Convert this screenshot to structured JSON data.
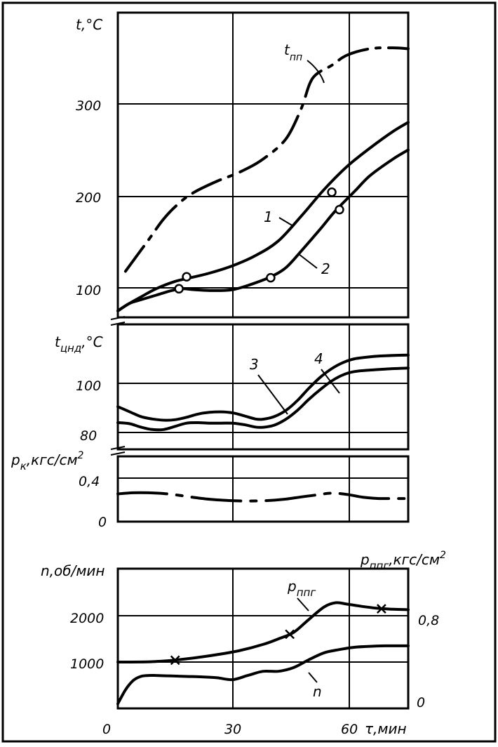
{
  "chart_data": [
    {
      "type": "line",
      "panel": "temperature",
      "ylabel": "t,°C",
      "y_ticks": [
        "300",
        "200",
        "100"
      ],
      "y_tick_values": [
        300,
        200,
        100
      ],
      "ylim": [
        70,
        410
      ],
      "xlim": [
        0,
        76
      ],
      "grid": true,
      "series": [
        {
          "name": "t_пп",
          "label_main": "t",
          "label_sub": "пп",
          "style": "dash-dot",
          "x": [
            2,
            8,
            12,
            16,
            20,
            26,
            32,
            38,
            44,
            48,
            51,
            56,
            60,
            66,
            72,
            76
          ],
          "y": [
            118,
            152,
            175,
            192,
            204,
            216,
            226,
            240,
            262,
            295,
            328,
            342,
            353,
            360,
            361,
            360
          ]
        },
        {
          "name": "1",
          "style": "solid",
          "x": [
            0,
            3,
            6,
            10,
            15,
            19,
            24,
            30,
            36,
            42,
            48,
            54,
            60,
            66,
            72,
            76
          ],
          "y": [
            75,
            83,
            90,
            99,
            107,
            111,
            116,
            124,
            135,
            151,
            178,
            207,
            232,
            252,
            270,
            280
          ]
        },
        {
          "name": "2",
          "style": "solid",
          "x": [
            0,
            3,
            6,
            10,
            14,
            17,
            20,
            25,
            30,
            35,
            40,
            44,
            48,
            53,
            57,
            62,
            66,
            72,
            76
          ],
          "y": [
            75,
            83,
            87,
            92,
            97,
            99,
            98,
            97,
            98,
            104,
            112,
            122,
            140,
            164,
            184,
            205,
            222,
            240,
            250
          ]
        }
      ],
      "markers": [
        {
          "series": "1",
          "x": 18,
          "y": 112,
          "shape": "circle"
        },
        {
          "series": "1",
          "x": 56,
          "y": 204,
          "shape": "circle"
        },
        {
          "series": "2",
          "x": 16,
          "y": 99,
          "shape": "circle"
        },
        {
          "series": "2",
          "x": 40,
          "y": 111,
          "shape": "circle"
        },
        {
          "series": "2",
          "x": 58,
          "y": 185,
          "shape": "circle"
        }
      ],
      "annotations": [
        "1",
        "2"
      ]
    },
    {
      "type": "line",
      "panel": "lp-cylinder-temperature",
      "ylabel_main": "t",
      "ylabel_sub": "цнд",
      "ylabel_unit": ",°С",
      "y_ticks": [
        "100",
        "80"
      ],
      "y_tick_values": [
        100,
        80
      ],
      "ylim": [
        74,
        120
      ],
      "xlim": [
        0,
        76
      ],
      "grid": true,
      "series": [
        {
          "name": "3",
          "style": "solid",
          "x": [
            0,
            3,
            6,
            9,
            12,
            15,
            18,
            21,
            24,
            27,
            30,
            33,
            36,
            38,
            41,
            44,
            47,
            50,
            53,
            56,
            59,
            62,
            66,
            70,
            76
          ],
          "y": [
            90.5,
            88.5,
            86.5,
            85.5,
            85,
            85.2,
            86.2,
            87.5,
            88.2,
            88.4,
            88,
            86.8,
            85.5,
            85.4,
            86.5,
            89,
            93,
            98,
            102.5,
            106,
            108.5,
            110,
            110.8,
            111.2,
            111.5
          ]
        },
        {
          "name": "4",
          "style": "solid",
          "x": [
            0,
            3,
            6,
            9,
            12,
            15,
            18,
            21,
            24,
            27,
            30,
            33,
            36,
            38,
            41,
            44,
            47,
            50,
            53,
            56,
            59,
            62,
            66,
            70,
            76
          ],
          "y": [
            84,
            83.6,
            82.2,
            81.2,
            81.2,
            82.5,
            83.8,
            84,
            83.8,
            83.8,
            83.8,
            83.2,
            82.2,
            82.1,
            83,
            85.4,
            89,
            93.5,
            97.5,
            101,
            103.5,
            104.8,
            105.4,
            105.8,
            106.2
          ]
        }
      ],
      "annotations": [
        "3",
        "4"
      ]
    },
    {
      "type": "line",
      "panel": "condenser-pressure",
      "ylabel_main": "p",
      "ylabel_sub": "к",
      "ylabel_unit": ",кгс/см",
      "ylabel_sup": "2",
      "y_ticks": [
        "0,4",
        "0"
      ],
      "y_tick_values": [
        0.4,
        0
      ],
      "ylim": [
        0,
        0.4
      ],
      "xlim": [
        0,
        76
      ],
      "grid": true,
      "series": [
        {
          "name": "p_к",
          "style": "partially dash-dot",
          "x": [
            0,
            4,
            8,
            12,
            16,
            20,
            24,
            28,
            32,
            36,
            40,
            44,
            48,
            52,
            56,
            60,
            64,
            68,
            72,
            76
          ],
          "y": [
            0.255,
            0.265,
            0.265,
            0.258,
            0.242,
            0.222,
            0.206,
            0.196,
            0.19,
            0.19,
            0.195,
            0.207,
            0.227,
            0.245,
            0.262,
            0.25,
            0.225,
            0.213,
            0.212,
            0.212
          ]
        }
      ]
    },
    {
      "type": "line",
      "panel": "speed-and-steam-pressure",
      "ylabel_left": "n,об/мин",
      "ylabel_right_main": "p",
      "ylabel_right_sub": "ппг",
      "ylabel_right_unit": ",кгс/см",
      "ylabel_right_sup": "2",
      "y_ticks_left": [
        "2000",
        "1000"
      ],
      "y_tick_values_left": [
        2000,
        1000
      ],
      "y_ticks_right": [
        "0,8",
        "0"
      ],
      "y_tick_values_right": [
        0.8,
        0
      ],
      "ylim_left": [
        0,
        2700
      ],
      "ylim_right": [
        0,
        1.0
      ],
      "xlabel": "τ,мин",
      "x_ticks": [
        "0",
        "30",
        "60"
      ],
      "x_tick_values": [
        0,
        30,
        60
      ],
      "xlim": [
        0,
        76
      ],
      "grid": true,
      "series": [
        {
          "name": "p_ппг",
          "label_main": "p",
          "label_sub": "ппг",
          "style": "solid",
          "x": [
            0,
            6,
            10,
            14,
            20,
            26,
            32,
            38,
            42,
            46,
            50,
            54,
            57,
            60,
            64,
            68,
            72,
            76
          ],
          "y": [
            1000,
            1002,
            1012,
            1035,
            1090,
            1160,
            1250,
            1380,
            1500,
            1640,
            1920,
            2190,
            2280,
            2250,
            2200,
            2160,
            2140,
            2130
          ]
        },
        {
          "name": "n",
          "style": "solid",
          "x": [
            0,
            2,
            4,
            6,
            8,
            10,
            14,
            18,
            22,
            26,
            30,
            34,
            38,
            42,
            46,
            50,
            54,
            58,
            62,
            66,
            70,
            76
          ],
          "y": [
            100,
            400,
            600,
            690,
            710,
            710,
            700,
            690,
            680,
            660,
            620,
            710,
            800,
            800,
            880,
            1050,
            1200,
            1270,
            1320,
            1340,
            1350,
            1350
          ]
        }
      ],
      "markers": [
        {
          "series": "p_ппг",
          "x": 15,
          "y": 1040,
          "shape": "cross"
        },
        {
          "series": "p_ппг",
          "x": 45,
          "y": 1600,
          "shape": "cross"
        },
        {
          "series": "p_ппг",
          "x": 69,
          "y": 2150,
          "shape": "cross"
        }
      ]
    }
  ]
}
